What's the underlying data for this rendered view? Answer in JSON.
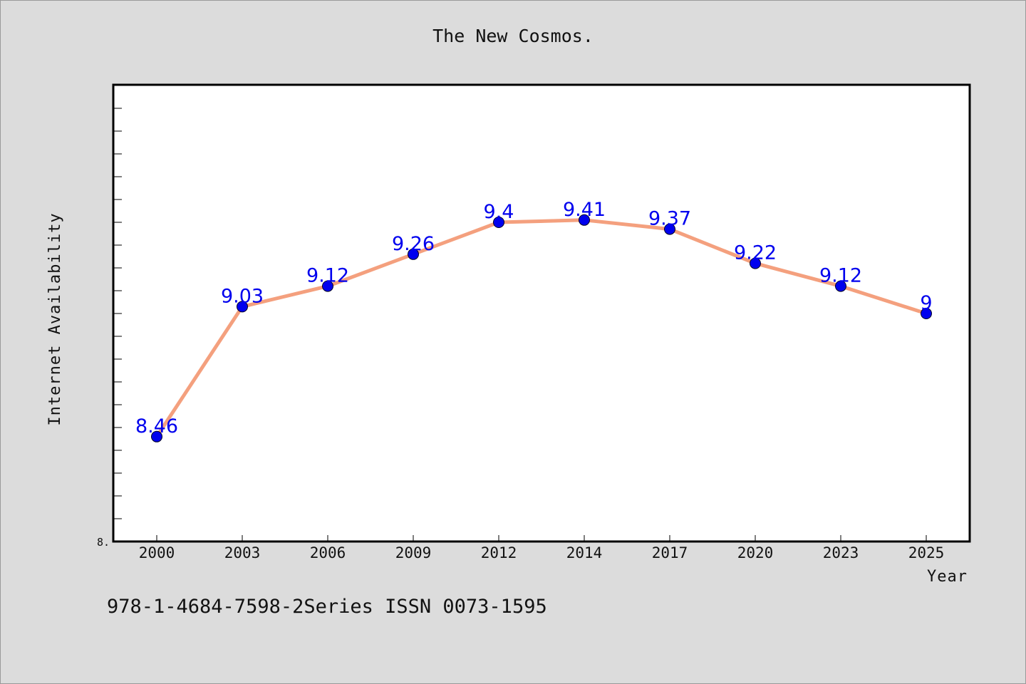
{
  "chart_data": {
    "type": "line",
    "title": "The New Cosmos.",
    "xlabel": "Year",
    "ylabel": "Internet Availability",
    "categories": [
      "2000",
      "2003",
      "2006",
      "2009",
      "2012",
      "2014",
      "2017",
      "2020",
      "2023",
      "2025"
    ],
    "series": [
      {
        "values": [
          8.46,
          9.03,
          9.12,
          9.26,
          9.4,
          9.41,
          9.37,
          9.22,
          9.12,
          9.0
        ],
        "data_labels": [
          "8.46",
          "9.03",
          "9.12",
          "9.26",
          "9.4",
          "9.41",
          "9.37",
          "9.22",
          "9.12",
          "9"
        ],
        "line_color": "#f4a07e",
        "marker_color": "#0000ee"
      }
    ],
    "ylim": [
      8.0,
      10.0
    ],
    "y_tick_label_shown": "8.",
    "grid": false,
    "legend": "none"
  },
  "footer": {
    "text": "978-1-4684-7598-2Series ISSN 0073-1595"
  }
}
